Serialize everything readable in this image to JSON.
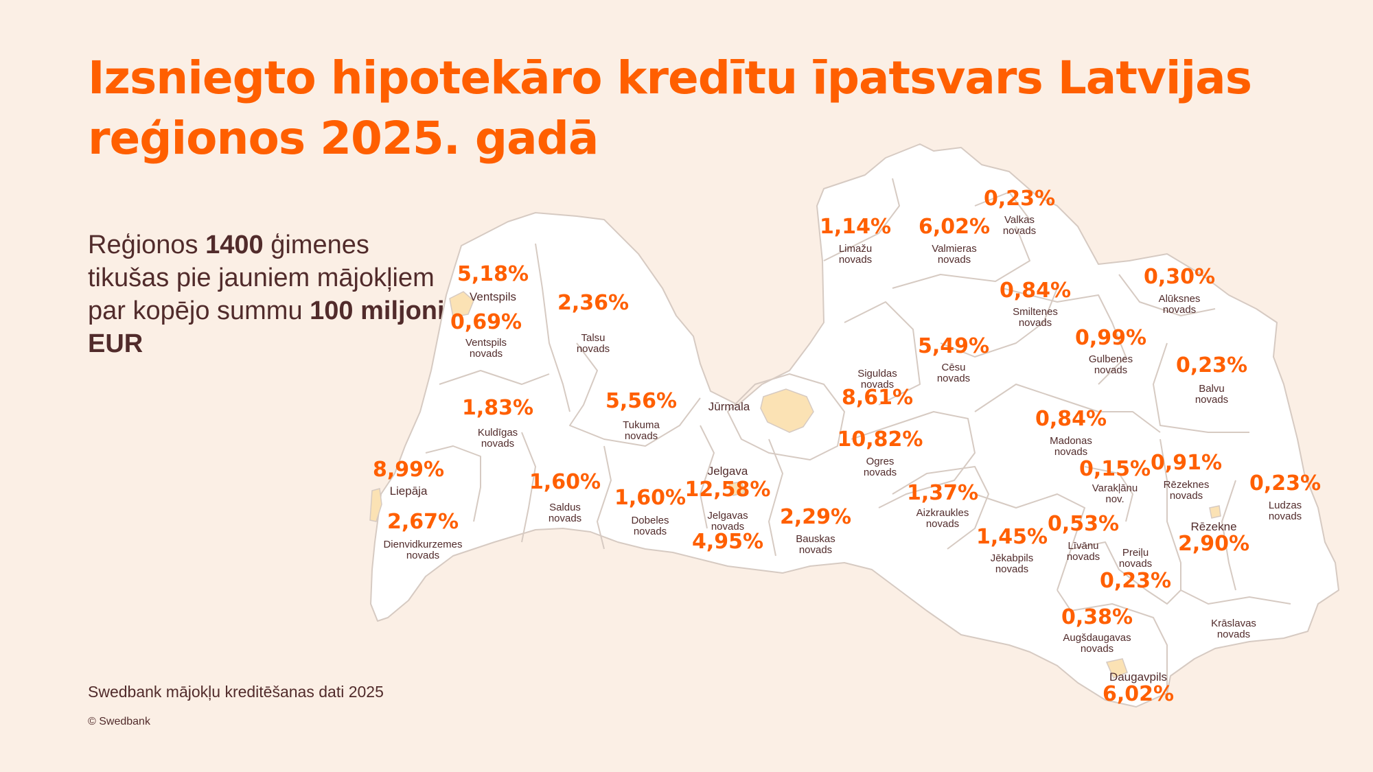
{
  "title": "Izsniegto hipotekāro kredītu īpatsvars Latvijas reģionos 2025. gadā",
  "intro": {
    "part1": "Reģionos ",
    "families": "1400",
    "part2": " ģimenes tikušas pie jauniem mājokļiem par kopējo summu ",
    "amount": "100 miljoni EUR"
  },
  "source": "Swedbank mājokļu kreditēšanas dati 2025",
  "copyright": "© Swedbank",
  "colors": {
    "background": "#fbefe5",
    "accent": "#ff5f00",
    "text": "#512b2b",
    "region_fill": "#ffffff",
    "region_border": "#d9cdc6",
    "city_fill": "#fbe2b4"
  },
  "map_labels": [
    {
      "id": "ventspils",
      "value": "5,18%",
      "name": [
        "Ventspils"
      ],
      "kind": "city"
    },
    {
      "id": "ventspils-novads",
      "value": "0,69%",
      "name": [
        "Ventspils",
        "novads"
      ],
      "kind": "region"
    },
    {
      "id": "talsu",
      "value": "2,36%",
      "name": [
        "Talsu",
        "novads"
      ],
      "kind": "region"
    },
    {
      "id": "kuldigas",
      "value": "1,83%",
      "name": [
        "Kuldīgas",
        "novads"
      ],
      "kind": "region"
    },
    {
      "id": "tukuma",
      "value": "5,56%",
      "name": [
        "Tukuma",
        "novads"
      ],
      "kind": "region"
    },
    {
      "id": "jurmala",
      "value": "",
      "name": [
        "Jūrmala"
      ],
      "kind": "city"
    },
    {
      "id": "liepaja",
      "value": "8,99%",
      "name": [
        "Liepāja"
      ],
      "kind": "city"
    },
    {
      "id": "dienvidkurzemes",
      "value": "2,67%",
      "name": [
        "Dienvidkurzemes",
        "novads"
      ],
      "kind": "region"
    },
    {
      "id": "saldus",
      "value": "1,60%",
      "name": [
        "Saldus",
        "novads"
      ],
      "kind": "region"
    },
    {
      "id": "dobeles",
      "value": "1,60%",
      "name": [
        "Dobeles",
        "novads"
      ],
      "kind": "region"
    },
    {
      "id": "jelgava",
      "value": "12,58%",
      "name": [
        "Jelgava"
      ],
      "kind": "city"
    },
    {
      "id": "jelgavas-novads",
      "value": "4,95%",
      "name": [
        "Jelgavas",
        "novads"
      ],
      "kind": "region"
    },
    {
      "id": "bauskas",
      "value": "2,29%",
      "name": [
        "Bauskas",
        "novads"
      ],
      "kind": "region"
    },
    {
      "id": "limazu",
      "value": "1,14%",
      "name": [
        "Limažu",
        "novads"
      ],
      "kind": "region"
    },
    {
      "id": "valmieras",
      "value": "6,02%",
      "name": [
        "Valmieras",
        "novads"
      ],
      "kind": "region"
    },
    {
      "id": "valkas",
      "value": "0,23%",
      "name": [
        "Valkas",
        "novads"
      ],
      "kind": "region"
    },
    {
      "id": "smiltenes",
      "value": "0,84%",
      "name": [
        "Smiltenes",
        "novads"
      ],
      "kind": "region"
    },
    {
      "id": "aluksnes",
      "value": "0,30%",
      "name": [
        "Alūksnes",
        "novads"
      ],
      "kind": "region"
    },
    {
      "id": "siguldas",
      "value": "8,61%",
      "name": [
        "Siguldas",
        "novads"
      ],
      "kind": "region"
    },
    {
      "id": "cesu",
      "value": "5,49%",
      "name": [
        "Cēsu",
        "novads"
      ],
      "kind": "region"
    },
    {
      "id": "gulbenes",
      "value": "0,99%",
      "name": [
        "Gulbenes",
        "novads"
      ],
      "kind": "region"
    },
    {
      "id": "balvu",
      "value": "0,23%",
      "name": [
        "Balvu",
        "novads"
      ],
      "kind": "region"
    },
    {
      "id": "ogres",
      "value": "10,82%",
      "name": [
        "Ogres",
        "novads"
      ],
      "kind": "region"
    },
    {
      "id": "madonas",
      "value": "0,84%",
      "name": [
        "Madonas",
        "novads"
      ],
      "kind": "region"
    },
    {
      "id": "aizkraukles",
      "value": "1,37%",
      "name": [
        "Aizkraukles",
        "novads"
      ],
      "kind": "region"
    },
    {
      "id": "varaklanu",
      "value": "0,15%",
      "name": [
        "Varakļānu",
        "nov."
      ],
      "kind": "region"
    },
    {
      "id": "rezeknes",
      "value": "0,91%",
      "name": [
        "Rēzeknes",
        "novads"
      ],
      "kind": "region"
    },
    {
      "id": "ludzas",
      "value": "0,23%",
      "name": [
        "Ludzas",
        "novads"
      ],
      "kind": "region"
    },
    {
      "id": "rezekne",
      "value": "2,90%",
      "name": [
        "Rēzekne"
      ],
      "kind": "city"
    },
    {
      "id": "jekabpils",
      "value": "1,45%",
      "name": [
        "Jēkabpils",
        "novads"
      ],
      "kind": "region"
    },
    {
      "id": "livanu",
      "value": "0,53%",
      "name": [
        "Līvānu",
        "novads"
      ],
      "kind": "region"
    },
    {
      "id": "preilu",
      "value": "0,23%",
      "name": [
        "Preiļu",
        "novads"
      ],
      "kind": "region"
    },
    {
      "id": "augsdaugavas",
      "value": "0,38%",
      "name": [
        "Augšdaugavas",
        "novads"
      ],
      "kind": "region"
    },
    {
      "id": "kraslavas",
      "value": "",
      "name": [
        "Krāslavas",
        "novads"
      ],
      "kind": "region"
    },
    {
      "id": "daugavpils",
      "value": "6,02%",
      "name": [
        "Daugavpils"
      ],
      "kind": "city"
    }
  ]
}
